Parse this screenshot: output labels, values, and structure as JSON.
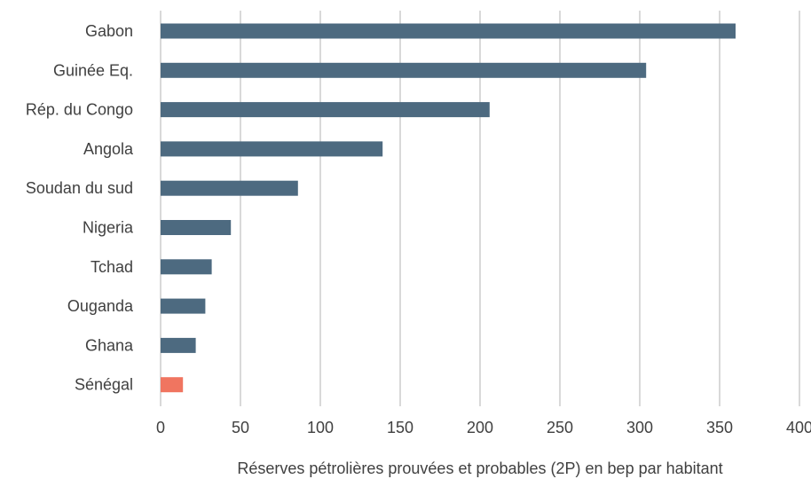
{
  "chart_data": {
    "type": "bar",
    "orientation": "horizontal",
    "categories": [
      "Gabon",
      "Guinée Eq.",
      "Rép. du Congo",
      "Angola",
      "Soudan du sud",
      "Nigeria",
      "Tchad",
      "Ouganda",
      "Ghana",
      "Sénégal"
    ],
    "values": [
      360,
      304,
      206,
      139,
      86,
      44,
      32,
      28,
      22,
      14
    ],
    "highlight_category": "Sénégal",
    "colors": {
      "bar": "#4d6a80",
      "highlight": "#f07560",
      "grid": "#d9d9d9",
      "text": "#404040"
    },
    "xlabel": "Réserves pétrolières prouvées et probables (2P) en bep par habitant",
    "xlim": [
      0,
      400
    ],
    "xticks": [
      0,
      50,
      100,
      150,
      200,
      250,
      300,
      350,
      400
    ],
    "grid": "vertical",
    "legend": "none"
  }
}
